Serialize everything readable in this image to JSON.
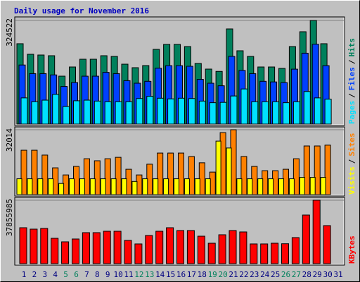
{
  "title": "Daily usage for November 2016",
  "legend_separator": "/",
  "chart_data": [
    {
      "type": "bar",
      "ylim": [
        0,
        324522
      ],
      "yticks": [
        324522
      ],
      "series": [
        {
          "name": "Hits",
          "color": "#00805c",
          "values": [
            251700,
            218600,
            216300,
            214100,
            150100,
            178800,
            203100,
            203100,
            214100,
            211900,
            187600,
            176600,
            183200,
            234000,
            249500,
            249500,
            242800,
            189900,
            172200,
            165000,
            298000,
            229600,
            211900,
            178800,
            178800,
            174400,
            242800,
            289200,
            324522,
            251700,
            null
          ]
        },
        {
          "name": "Files",
          "color": "#0040ff",
          "values": [
            185000,
            158000,
            158000,
            154000,
            118000,
            130000,
            150000,
            150000,
            162000,
            158000,
            136000,
            128000,
            134000,
            175000,
            183000,
            183000,
            181000,
            140000,
            128000,
            120000,
            212000,
            168000,
            158000,
            134000,
            132000,
            130000,
            172000,
            222000,
            250000,
            183000,
            null
          ]
        },
        {
          "name": "Pages",
          "color": "#00e0ff",
          "values": [
            82000,
            70000,
            75000,
            93000,
            55000,
            73000,
            75000,
            72000,
            70000,
            70000,
            70000,
            80000,
            87000,
            81000,
            79000,
            81000,
            80000,
            72000,
            67000,
            68000,
            88000,
            110000,
            70000,
            70000,
            70000,
            67000,
            70000,
            102000,
            82000,
            78000,
            null
          ]
        }
      ]
    },
    {
      "type": "bar",
      "ylim": [
        0,
        32014
      ],
      "yticks": [
        32014
      ],
      "series": [
        {
          "name": "Sites",
          "color": "#ff8000",
          "values": [
            21900,
            21900,
            19500,
            13200,
            9700,
            13900,
            17700,
            16700,
            17700,
            18400,
            12500,
            9700,
            15000,
            20500,
            20500,
            20500,
            18800,
            15700,
            11100,
            30600,
            32014,
            18800,
            13900,
            11800,
            11800,
            12500,
            17700,
            24000,
            24000,
            24400,
            null
          ]
        },
        {
          "name": "Visits",
          "color": "#ffff00",
          "values": [
            7800,
            7800,
            7800,
            7800,
            5500,
            7800,
            7800,
            7800,
            7800,
            7800,
            7800,
            6500,
            7800,
            7800,
            7800,
            7800,
            7800,
            7800,
            7800,
            26400,
            23000,
            7800,
            7800,
            7800,
            7800,
            7800,
            7800,
            8500,
            8500,
            8500,
            null
          ]
        }
      ]
    },
    {
      "type": "bar",
      "ylim": [
        0,
        37855985
      ],
      "yticks": [
        37855985
      ],
      "categories": [
        "1",
        "2",
        "3",
        "4",
        "5",
        "6",
        "7",
        "8",
        "9",
        "10",
        "11",
        "12",
        "13",
        "14",
        "15",
        "16",
        "17",
        "18",
        "19",
        "20",
        "21",
        "22",
        "23",
        "24",
        "25",
        "26",
        "27",
        "28",
        "29",
        "30",
        "31"
      ],
      "category_colors": [
        "#000080",
        "#000080",
        "#000080",
        "#000080",
        "#00805c",
        "#00805c",
        "#000080",
        "#000080",
        "#000080",
        "#000080",
        "#000080",
        "#00805c",
        "#00805c",
        "#000080",
        "#000080",
        "#000080",
        "#000080",
        "#000080",
        "#00805c",
        "#00805c",
        "#000080",
        "#000080",
        "#000080",
        "#000080",
        "#000080",
        "#00805c",
        "#00805c",
        "#000080",
        "#000080",
        "#000080",
        "#000080"
      ],
      "series": [
        {
          "name": "KBytes",
          "color": "#ff0000",
          "values": [
            21450000,
            20610000,
            21030000,
            15140000,
            13040000,
            14720000,
            18510000,
            18510000,
            19350000,
            19350000,
            13880000,
            11780000,
            16820000,
            19350000,
            21450000,
            19770000,
            19770000,
            16400000,
            12200000,
            17250000,
            19770000,
            18930000,
            11780000,
            11780000,
            12200000,
            11900000,
            15560000,
            29020000,
            37855985,
            22710000,
            null
          ]
        }
      ]
    }
  ]
}
